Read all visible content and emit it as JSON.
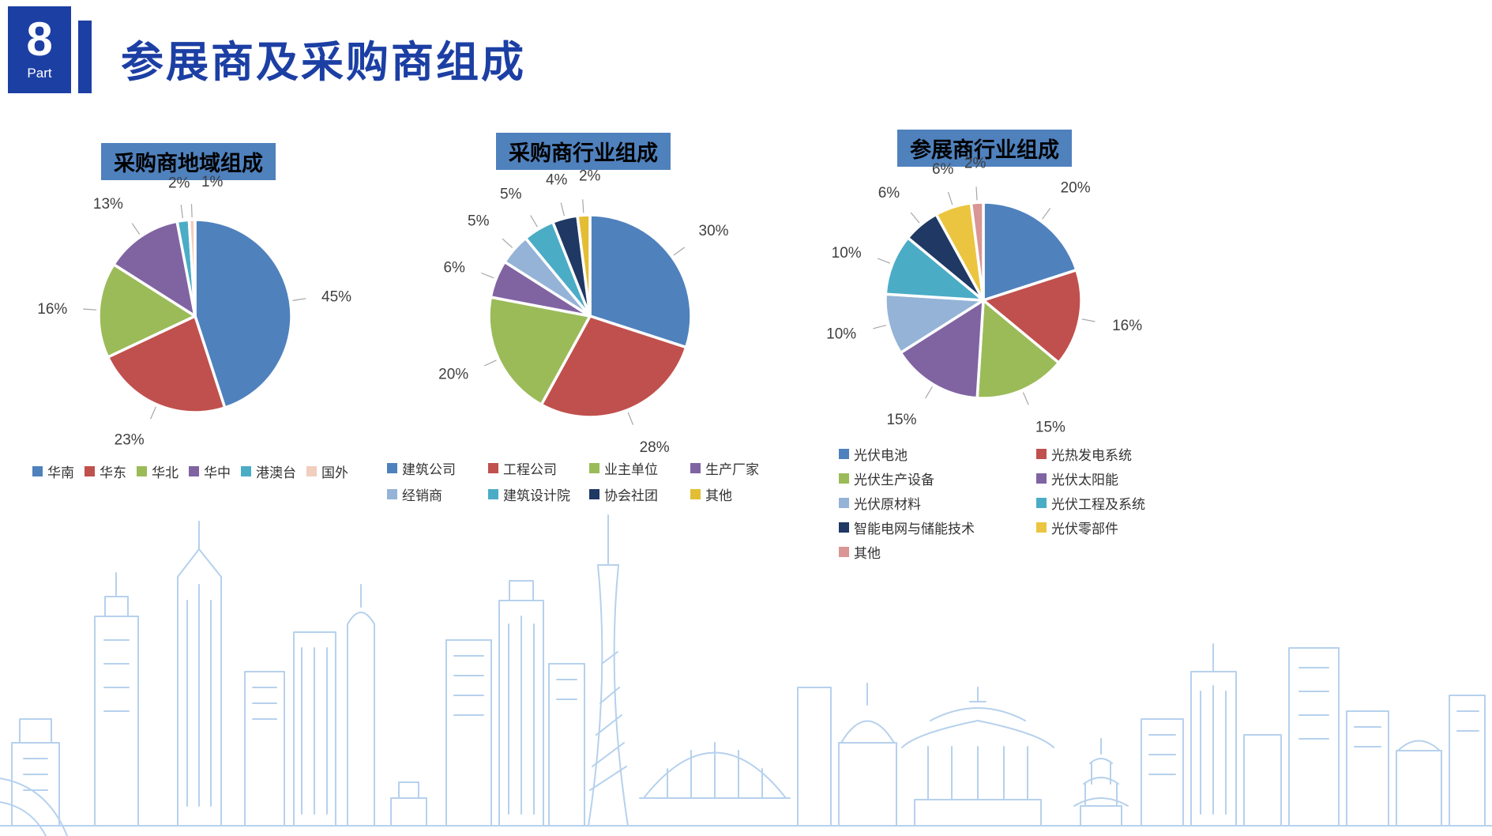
{
  "slide": {
    "part_number": "8",
    "part_label": "Part",
    "title": "参展商及采购商组成"
  },
  "colors": {
    "header_accent": "#1C3FA4",
    "chart_title_bg": "#4F81BD",
    "label_text": "#3F3F3F",
    "leader_line": "#A6A6A6",
    "skyline": "#B6D1ED"
  },
  "chart_data": [
    {
      "type": "pie",
      "title": "采购商地域组成",
      "legend_position": "bottom",
      "slices": [
        {
          "label": "华南",
          "value": 45,
          "display": "45%",
          "color": "#4F81BD"
        },
        {
          "label": "华东",
          "value": 23,
          "display": "23%",
          "color": "#C0504D"
        },
        {
          "label": "华北",
          "value": 16,
          "display": "16%",
          "color": "#9BBB59"
        },
        {
          "label": "华中",
          "value": 13,
          "display": "13%",
          "color": "#8064A2"
        },
        {
          "label": "港澳台",
          "value": 2,
          "display": "2%",
          "color": "#4BACC6"
        },
        {
          "label": "国外",
          "value": 1,
          "display": "1%",
          "color": "#F2CEBE"
        }
      ]
    },
    {
      "type": "pie",
      "title": "采购商行业组成",
      "legend_position": "bottom",
      "slices": [
        {
          "label": "建筑公司",
          "value": 30,
          "display": "30%",
          "color": "#4F81BD"
        },
        {
          "label": "工程公司",
          "value": 28,
          "display": "28%",
          "color": "#C0504D"
        },
        {
          "label": "业主单位",
          "value": 20,
          "display": "20%",
          "color": "#9BBB59"
        },
        {
          "label": "生产厂家",
          "value": 6,
          "display": "6%",
          "color": "#8064A2"
        },
        {
          "label": "经销商",
          "value": 5,
          "display": "5%",
          "color": "#95B3D7"
        },
        {
          "label": "建筑设计院",
          "value": 5,
          "display": "5%",
          "color": "#4BACC6"
        },
        {
          "label": "协会社团",
          "value": 4,
          "display": "4%",
          "color": "#1F3864"
        },
        {
          "label": "其他",
          "value": 2,
          "display": "2%",
          "color": "#E3BE35"
        }
      ]
    },
    {
      "type": "pie",
      "title": "参展商行业组成",
      "legend_position": "bottom",
      "slices": [
        {
          "label": "光伏电池",
          "value": 20,
          "display": "20%",
          "color": "#4F81BD"
        },
        {
          "label": "光热发电系统",
          "value": 16,
          "display": "16%",
          "color": "#C0504D"
        },
        {
          "label": "光伏生产设备",
          "value": 15,
          "display": "15%",
          "color": "#9BBB59"
        },
        {
          "label": "光伏太阳能",
          "value": 15,
          "display": "15%",
          "color": "#8064A2"
        },
        {
          "label": "光伏原材料",
          "value": 10,
          "display": "10%",
          "color": "#95B3D7"
        },
        {
          "label": "光伏工程及系统",
          "value": 10,
          "display": "10%",
          "color": "#4BACC6"
        },
        {
          "label": "智能电网与储能技术",
          "value": 6,
          "display": "6%",
          "color": "#1F3864"
        },
        {
          "label": "光伏零部件",
          "value": 6,
          "display": "6%",
          "color": "#EBC540"
        },
        {
          "label": "其他",
          "value": 2,
          "display": "2%",
          "color": "#D99694"
        }
      ]
    }
  ]
}
